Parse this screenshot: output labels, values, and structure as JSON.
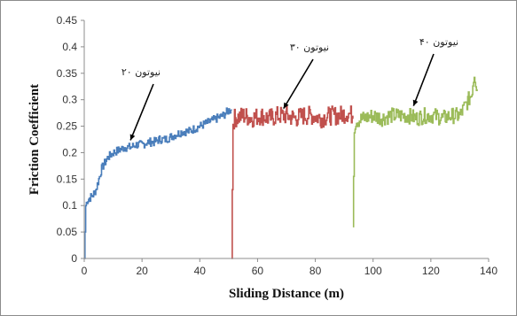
{
  "chart_data": {
    "type": "line",
    "xlabel": "Sliding Distance (m)",
    "ylabel": "Friction Coefficient",
    "xlim": [
      0,
      140
    ],
    "ylim": [
      0,
      0.45
    ],
    "xticks": [
      "0",
      "20",
      "40",
      "60",
      "80",
      "100",
      "120",
      "140"
    ],
    "yticks": [
      "0",
      "0.05",
      "0.1",
      "0.15",
      "0.2",
      "0.25",
      "0.3",
      "0.35",
      "0.4",
      "0.45"
    ],
    "grid": false,
    "series": [
      {
        "name": "۲۰ نیوتون",
        "color": "#4a7ebb",
        "x": [
          0,
          0.5,
          1,
          2,
          3,
          4,
          5,
          6,
          7,
          8,
          10,
          12,
          14,
          16,
          18,
          20,
          22,
          24,
          26,
          28,
          30,
          32,
          34,
          36,
          38,
          40,
          42,
          44,
          46,
          48,
          50,
          51
        ],
        "y": [
          0.0,
          0.1,
          0.11,
          0.115,
          0.12,
          0.13,
          0.15,
          0.17,
          0.18,
          0.19,
          0.2,
          0.205,
          0.21,
          0.21,
          0.215,
          0.215,
          0.22,
          0.22,
          0.225,
          0.225,
          0.23,
          0.235,
          0.24,
          0.24,
          0.245,
          0.25,
          0.255,
          0.26,
          0.265,
          0.27,
          0.28,
          0.28
        ]
      },
      {
        "name": "۳۰ نیوتون",
        "color": "#c0504d",
        "x": [
          51,
          51.5,
          52,
          55,
          58,
          61,
          64,
          67,
          70,
          73,
          76,
          79,
          82,
          85,
          88,
          91,
          93
        ],
        "y": [
          0.0,
          0.26,
          0.265,
          0.27,
          0.265,
          0.27,
          0.265,
          0.27,
          0.27,
          0.265,
          0.27,
          0.27,
          0.265,
          0.27,
          0.27,
          0.275,
          0.27
        ]
      },
      {
        "name": "۴۰ نیوتون",
        "color": "#9bbb59",
        "x": [
          93,
          93.5,
          94,
          97,
          100,
          103,
          106,
          109,
          112,
          115,
          118,
          121,
          124,
          127,
          130,
          132,
          134,
          135,
          136
        ],
        "y": [
          0.06,
          0.25,
          0.26,
          0.265,
          0.27,
          0.265,
          0.27,
          0.27,
          0.27,
          0.265,
          0.27,
          0.27,
          0.265,
          0.27,
          0.27,
          0.29,
          0.31,
          0.35,
          0.32
        ]
      }
    ],
    "annotations": [
      {
        "text": "۲۰ نیوتون",
        "x": 16,
        "y": 0.21
      },
      {
        "text": "۳۰ نیوتون",
        "x": 69,
        "y": 0.27
      },
      {
        "text": "۴۰ نیوتون",
        "x": 114,
        "y": 0.275
      }
    ]
  }
}
